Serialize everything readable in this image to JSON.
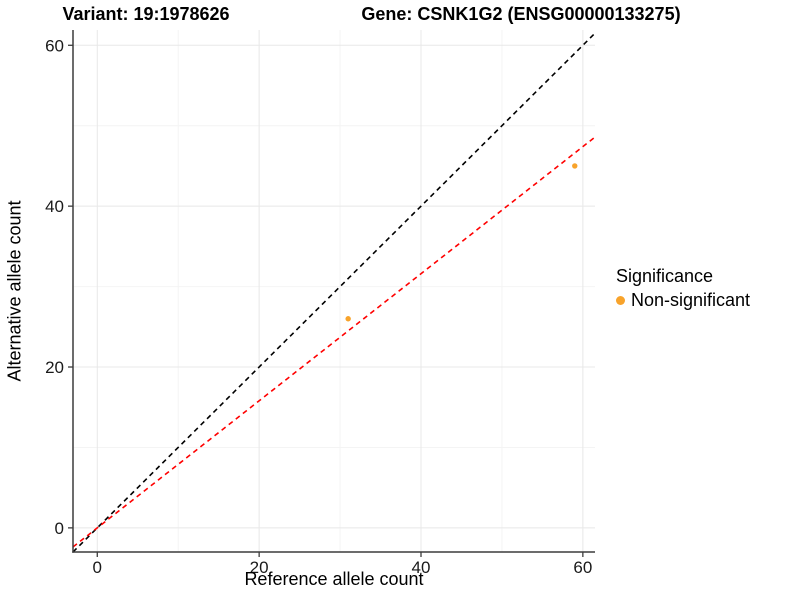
{
  "header": {
    "title_left": "Variant: 19:1978626",
    "title_right": "Gene: CSNK1G2 (ENSG00000133275)"
  },
  "chart_data": {
    "type": "scatter",
    "xlabel": "Reference allele count",
    "ylabel": "Alternative allele count",
    "xlim": [
      -3,
      61.5
    ],
    "ylim": [
      -3,
      61.9
    ],
    "x_ticks": [
      0,
      20,
      40,
      60
    ],
    "y_ticks": [
      0,
      20,
      40,
      60
    ],
    "x_minor_ticks": [
      10,
      30,
      50
    ],
    "y_minor_ticks": [
      10,
      30,
      50
    ],
    "grid": true,
    "series": [
      {
        "name": "Non-significant",
        "marker": "dot",
        "color": "#F8A32B",
        "points": [
          {
            "x": 31,
            "y": 26
          },
          {
            "x": 59,
            "y": 45
          }
        ]
      }
    ],
    "lines": [
      {
        "name": "identity-line",
        "slope": 1,
        "intercept": 0,
        "color": "#000000",
        "style": "dashed"
      },
      {
        "name": "regression-line",
        "slope": 0.79,
        "intercept": 0,
        "color": "#FF0000",
        "style": "dashed"
      }
    ],
    "legend": {
      "title": "Significance",
      "position": "right",
      "items": [
        {
          "label": "Non-significant",
          "color": "#F8A32B",
          "marker": "dot"
        }
      ]
    },
    "colors": {
      "axis_line": "#3c3c3c",
      "tick_label": "#1a1a1a",
      "grid_major": "#e8e8e8",
      "grid_minor": "#f4f4f4"
    }
  }
}
